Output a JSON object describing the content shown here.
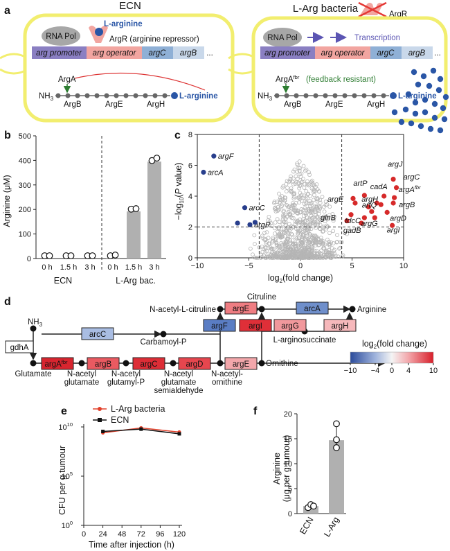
{
  "panel_a": {
    "label": "a",
    "left": {
      "title": "ECN",
      "rnapol": "RNA Pol",
      "larg": "L-arginine",
      "argr": "ArgR (arginine repressor)",
      "genes": [
        "arg promoter",
        "arg operator",
        "argC",
        "argB",
        "..."
      ],
      "path_top": [
        "ArgA"
      ],
      "nh3": "NH",
      "path_bottom": [
        "ArgB",
        "ArgE",
        "ArgH"
      ],
      "end": "L-arginine"
    },
    "right": {
      "title": "L-Arg bacteria",
      "argr": "ArgR",
      "rnapol": "RNA Pol",
      "transcription": "Transcription",
      "genes": [
        "arg promoter",
        "arg operator",
        "argC",
        "argB",
        "..."
      ],
      "argafbr": "ArgA",
      "fbr": "fbr",
      "feedback": "(feedback resistant)",
      "nh3": "NH",
      "path_bottom": [
        "ArgB",
        "ArgE",
        "ArgH"
      ],
      "end": "L-arginine"
    },
    "colors": {
      "promoter": "#8a7fc2",
      "operator": "#f2a5a0",
      "argC": "#8fb0d6",
      "argB": "#c9d8ea",
      "cell": "#f2ee6f",
      "blue_dot": "#2a56a6"
    }
  },
  "panel_b": {
    "label": "b",
    "ylabel": "Arginine (μM)",
    "group_labels": [
      "ECN",
      "L-Arg bac."
    ],
    "chart_data": {
      "type": "bar",
      "categories": [
        "0 h",
        "1.5 h",
        "3 h",
        "0 h",
        "1.5 h",
        "3 h"
      ],
      "values": [
        0,
        0,
        0,
        3,
        192,
        395
      ],
      "points": [
        [
          0,
          0
        ],
        [
          0,
          0
        ],
        [
          0,
          0
        ],
        [
          0,
          3
        ],
        [
          190,
          192
        ],
        [
          388,
          398
        ]
      ],
      "ylim": [
        0,
        500
      ],
      "yticks": [
        "0",
        "100",
        "200",
        "300",
        "400",
        "500"
      ],
      "groups": [
        "ECN",
        "ECN",
        "ECN",
        "L-Arg bac.",
        "L-Arg bac.",
        "L-Arg bac."
      ]
    }
  },
  "panel_c": {
    "label": "c",
    "xlabel": "log",
    "xlabel_sub": "2",
    "xlabel_rest": "(fold change)",
    "ylabel_a": "−log",
    "ylabel_sub": "10",
    "ylabel_b": "(",
    "ylabel_p": "P",
    "ylabel_c": " value)",
    "chart_data": {
      "type": "scatter",
      "xlim": [
        -10,
        10
      ],
      "ylim": [
        0,
        8
      ],
      "xticks": [
        "−10",
        "−5",
        "0",
        "5",
        "10"
      ],
      "yticks": [
        "0",
        "2",
        "4",
        "6",
        "8"
      ],
      "x_thresholds": [
        -4,
        4
      ],
      "y_threshold": 2,
      "down_points": [
        {
          "name": "argF",
          "x": -8.4,
          "y": 6.6
        },
        {
          "name": "arcA",
          "x": -9.4,
          "y": 5.55
        },
        {
          "name": "arcC",
          "x": -5.4,
          "y": 3.25
        },
        {
          "name": "argR",
          "x": -4.9,
          "y": 2.15
        },
        {
          "name": "",
          "x": -6.1,
          "y": 2.25
        },
        {
          "name": "",
          "x": -4.4,
          "y": 2.3
        }
      ],
      "up_points": [
        {
          "name": "argJ",
          "x": 9.0,
          "y": 5.1
        },
        {
          "name": "argC",
          "x": 9.3,
          "y": 4.55
        },
        {
          "name": "argA",
          "x": 9.1,
          "y": 3.9
        },
        {
          "name": "argB",
          "x": 9.0,
          "y": 3.55
        },
        {
          "name": "argD",
          "x": 8.4,
          "y": 2.95
        },
        {
          "name": "cadA",
          "x": 8.1,
          "y": 4.0
        },
        {
          "name": "artP",
          "x": 6.2,
          "y": 4.05
        },
        {
          "name": "argE",
          "x": 5.3,
          "y": 3.55
        },
        {
          "name": "argH",
          "x": 7.4,
          "y": 3.55
        },
        {
          "name": "artQ",
          "x": 6.9,
          "y": 3.0
        },
        {
          "name": "glnB",
          "x": 4.9,
          "y": 2.8
        },
        {
          "name": "tdcC",
          "x": 6.2,
          "y": 2.6
        },
        {
          "name": "argG",
          "x": 7.2,
          "y": 2.6
        },
        {
          "name": "gadB",
          "x": 5.9,
          "y": 2.25
        },
        {
          "name": "argI",
          "x": 8.9,
          "y": 2.1
        },
        {
          "name": "",
          "x": 5.1,
          "y": 3.85
        },
        {
          "name": "",
          "x": 6.6,
          "y": 3.3
        },
        {
          "name": "",
          "x": 4.5,
          "y": 2.4
        },
        {
          "name": "",
          "x": 7.8,
          "y": 3.45
        }
      ],
      "argA_sup": "fbr"
    }
  },
  "panel_d": {
    "label": "d",
    "nodes": {
      "acetyl_citrulline": "N-acetyl-L-citruline",
      "citrulline": "Citruline",
      "arginine": "Arginine",
      "nh3": "NH",
      "carbamoyl": "Carbamoyl-P",
      "argininosuccinate": "L-arginosuccinate",
      "glutamate": "Glutamate",
      "acetyl_glutamate": "N-acetyl\nglutamate",
      "acetyl_glutamyl": "N-acetyl\nglutamyl-P",
      "acetyl_semialdehyde": "N-acetyl\nglutamate\nsemialdehyde",
      "acetyl_ornithine": "N-acetyl-\nornithine",
      "ornithine": "Ornithine"
    },
    "enzymes": {
      "argE_top": "argE",
      "arcA": "arcA",
      "arcC": "arcC",
      "argF": "argF",
      "argI": "argI",
      "argG": "argG",
      "argH": "argH",
      "gdhA": "gdhA",
      "argA": "argA",
      "argA_sup": "fbr",
      "argB": "argB",
      "argC": "argC",
      "argD": "argD",
      "argE_bottom": "argE"
    },
    "legend": {
      "title_a": "log",
      "title_sub": "2",
      "title_b": "(fold change)",
      "ticks": [
        "−10",
        "−4",
        "0",
        "4",
        "10"
      ]
    }
  },
  "panel_e": {
    "label": "e",
    "legend": [
      "L-Arg bacteria",
      "ECN"
    ],
    "ylabel": "CFU per g tumour",
    "xlabel": "Time after injection (h)",
    "chart_data": {
      "type": "line",
      "x": [
        24,
        72,
        120
      ],
      "xticks": [
        "0",
        "24",
        "48",
        "72",
        "96",
        "120"
      ],
      "yticks": [
        "10",
        "10",
        "10"
      ],
      "ytick_exp": [
        "0",
        "5",
        "10"
      ],
      "ylog": true,
      "series": [
        {
          "name": "L-Arg bacteria",
          "values": [
            2500000000.0,
            8000000000.0,
            3000000000.0
          ],
          "color": "#e2402a"
        },
        {
          "name": "ECN",
          "values": [
            3500000000.0,
            6000000000.0,
            2000000000.0
          ],
          "color": "#111111"
        }
      ]
    }
  },
  "panel_f": {
    "label": "f",
    "ylabel_a": "Arginine",
    "ylabel_b": "(μg per g tumour)",
    "chart_data": {
      "type": "bar",
      "categories": [
        "ECN",
        "L-Arg"
      ],
      "values": [
        1.5,
        14.7
      ],
      "points": [
        [
          1.2,
          1.8,
          1.5
        ],
        [
          18.0,
          13.2,
          14.8
        ]
      ],
      "ylim": [
        0,
        20
      ],
      "yticks": [
        "0",
        "5",
        "10",
        "15",
        "20"
      ]
    }
  }
}
